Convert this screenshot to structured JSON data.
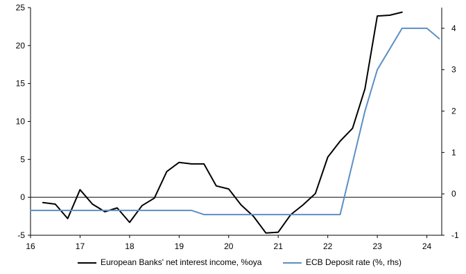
{
  "chart_data": {
    "type": "line",
    "title": "",
    "xlabel": "",
    "ylabel": "",
    "x_ticks": [
      16,
      17,
      18,
      19,
      20,
      21,
      22,
      23,
      24
    ],
    "xlim": [
      16,
      24.3
    ],
    "ylim_left": [
      -5,
      25
    ],
    "ylim_right": [
      -1,
      4.5
    ],
    "y_ticks_left": [
      -5,
      0,
      5,
      10,
      15,
      20,
      25
    ],
    "y_ticks_right": [
      -1,
      0,
      1,
      2,
      3,
      4
    ],
    "grid": false,
    "legend_position": "bottom",
    "series": [
      {
        "name": "European Banks' net interest income, %oya",
        "axis": "left",
        "color": "#000000",
        "x": [
          16.25,
          16.5,
          16.75,
          17.0,
          17.25,
          17.5,
          17.75,
          18.0,
          18.25,
          18.5,
          18.75,
          19.0,
          19.25,
          19.5,
          19.75,
          20.0,
          20.25,
          20.5,
          20.75,
          21.0,
          21.25,
          21.5,
          21.75,
          22.0,
          22.25,
          22.5,
          22.75,
          23.0,
          23.25,
          23.5
        ],
        "values": [
          -0.7,
          -0.9,
          -2.8,
          1.0,
          -0.9,
          -1.9,
          -1.4,
          -3.3,
          -1.1,
          -0.1,
          3.4,
          4.6,
          4.4,
          4.4,
          1.5,
          1.1,
          -1.0,
          -2.5,
          -4.7,
          -4.6,
          -2.3,
          -1.0,
          0.5,
          5.3,
          7.4,
          9.1,
          14.3,
          23.9,
          24.0,
          24.4
        ]
      },
      {
        "name": "ECB Deposit rate (%, rhs)",
        "axis": "right",
        "color": "#5b8fc4",
        "x": [
          16.0,
          16.25,
          16.5,
          16.75,
          17.0,
          17.25,
          17.5,
          17.75,
          18.0,
          18.25,
          18.5,
          18.75,
          19.0,
          19.25,
          19.5,
          19.75,
          20.0,
          20.25,
          20.5,
          20.75,
          21.0,
          21.25,
          21.5,
          21.75,
          22.0,
          22.25,
          22.5,
          22.75,
          23.0,
          23.25,
          23.5,
          23.75,
          24.0,
          24.25
        ],
        "values": [
          -0.4,
          -0.4,
          -0.4,
          -0.4,
          -0.4,
          -0.4,
          -0.4,
          -0.4,
          -0.4,
          -0.4,
          -0.4,
          -0.4,
          -0.4,
          -0.4,
          -0.5,
          -0.5,
          -0.5,
          -0.5,
          -0.5,
          -0.5,
          -0.5,
          -0.5,
          -0.5,
          -0.5,
          -0.5,
          -0.5,
          0.75,
          2.0,
          3.0,
          3.5,
          4.0,
          4.0,
          4.0,
          3.75
        ]
      }
    ]
  }
}
